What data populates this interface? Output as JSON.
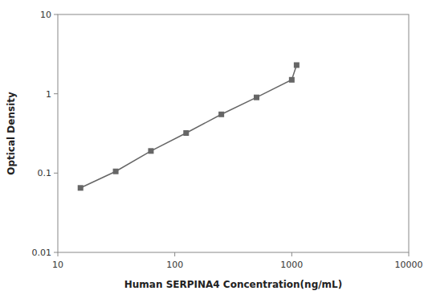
{
  "chart_data": {
    "type": "line",
    "x_label": "Human SERPINA4 Concentration(ng/mL)",
    "y_label": "Optical Density",
    "x": [
      15.625,
      31.25,
      62.5,
      125,
      250,
      500,
      1000,
      1100
    ],
    "values": [
      0.065,
      0.105,
      0.19,
      0.32,
      0.55,
      0.9,
      1.5,
      2.3
    ],
    "xlim": [
      10,
      10000
    ],
    "ylim": [
      0.01,
      10
    ],
    "xticks": [
      10,
      100,
      1000,
      10000
    ],
    "yticks": [
      0.01,
      0.1,
      1,
      10
    ],
    "log": true,
    "grid": false,
    "color": "#666666",
    "marker": "square",
    "line_style": "solid"
  }
}
